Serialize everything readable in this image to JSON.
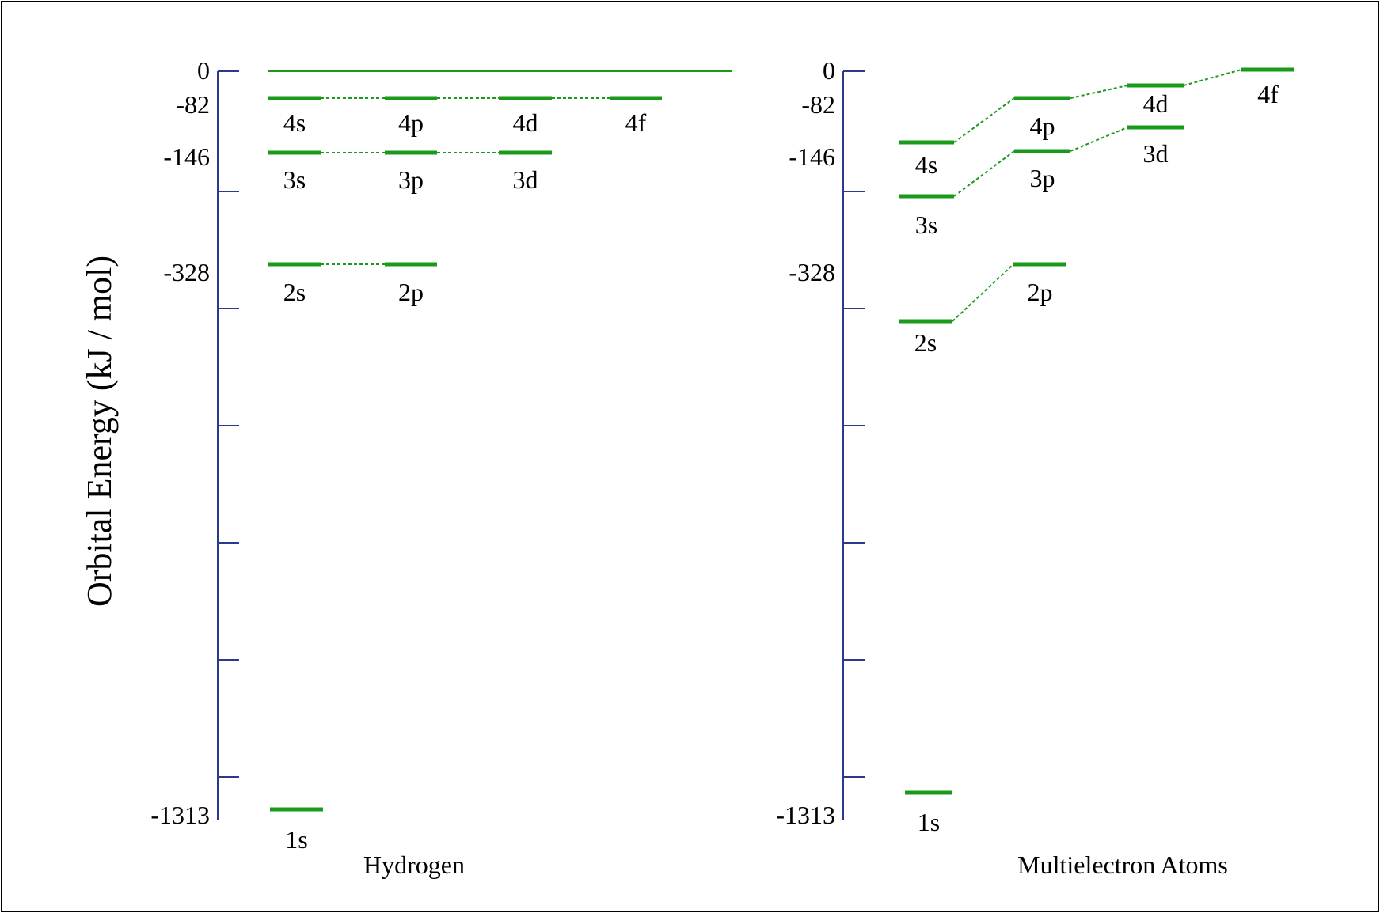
{
  "axis_title": "Orbital Energy (kJ / mol)",
  "colors": {
    "axis": "#2b3a8c",
    "level": "#1a9a1a",
    "frame": "#000000",
    "background": "#ffffff"
  },
  "tick_labels": [
    "0",
    "-82",
    "-146",
    "-328",
    "-1313"
  ],
  "panels": [
    {
      "name": "hydrogen",
      "label": "Hydrogen",
      "levels": [
        {
          "id": "1s",
          "label": "1s"
        },
        {
          "id": "2s",
          "label": "2s"
        },
        {
          "id": "2p",
          "label": "2p"
        },
        {
          "id": "3s",
          "label": "3s"
        },
        {
          "id": "3p",
          "label": "3p"
        },
        {
          "id": "3d",
          "label": "3d"
        },
        {
          "id": "4s",
          "label": "4s"
        },
        {
          "id": "4p",
          "label": "4p"
        },
        {
          "id": "4d",
          "label": "4d"
        },
        {
          "id": "4f",
          "label": "4f"
        }
      ]
    },
    {
      "name": "multielectron",
      "label": "Multielectron Atoms",
      "levels": [
        {
          "id": "1s",
          "label": "1s"
        },
        {
          "id": "2s",
          "label": "2s"
        },
        {
          "id": "2p",
          "label": "2p"
        },
        {
          "id": "3s",
          "label": "3s"
        },
        {
          "id": "3p",
          "label": "3p"
        },
        {
          "id": "3d",
          "label": "3d"
        },
        {
          "id": "4s",
          "label": "4s"
        },
        {
          "id": "4p",
          "label": "4p"
        },
        {
          "id": "4d",
          "label": "4d"
        },
        {
          "id": "4f",
          "label": "4f"
        }
      ]
    }
  ]
}
